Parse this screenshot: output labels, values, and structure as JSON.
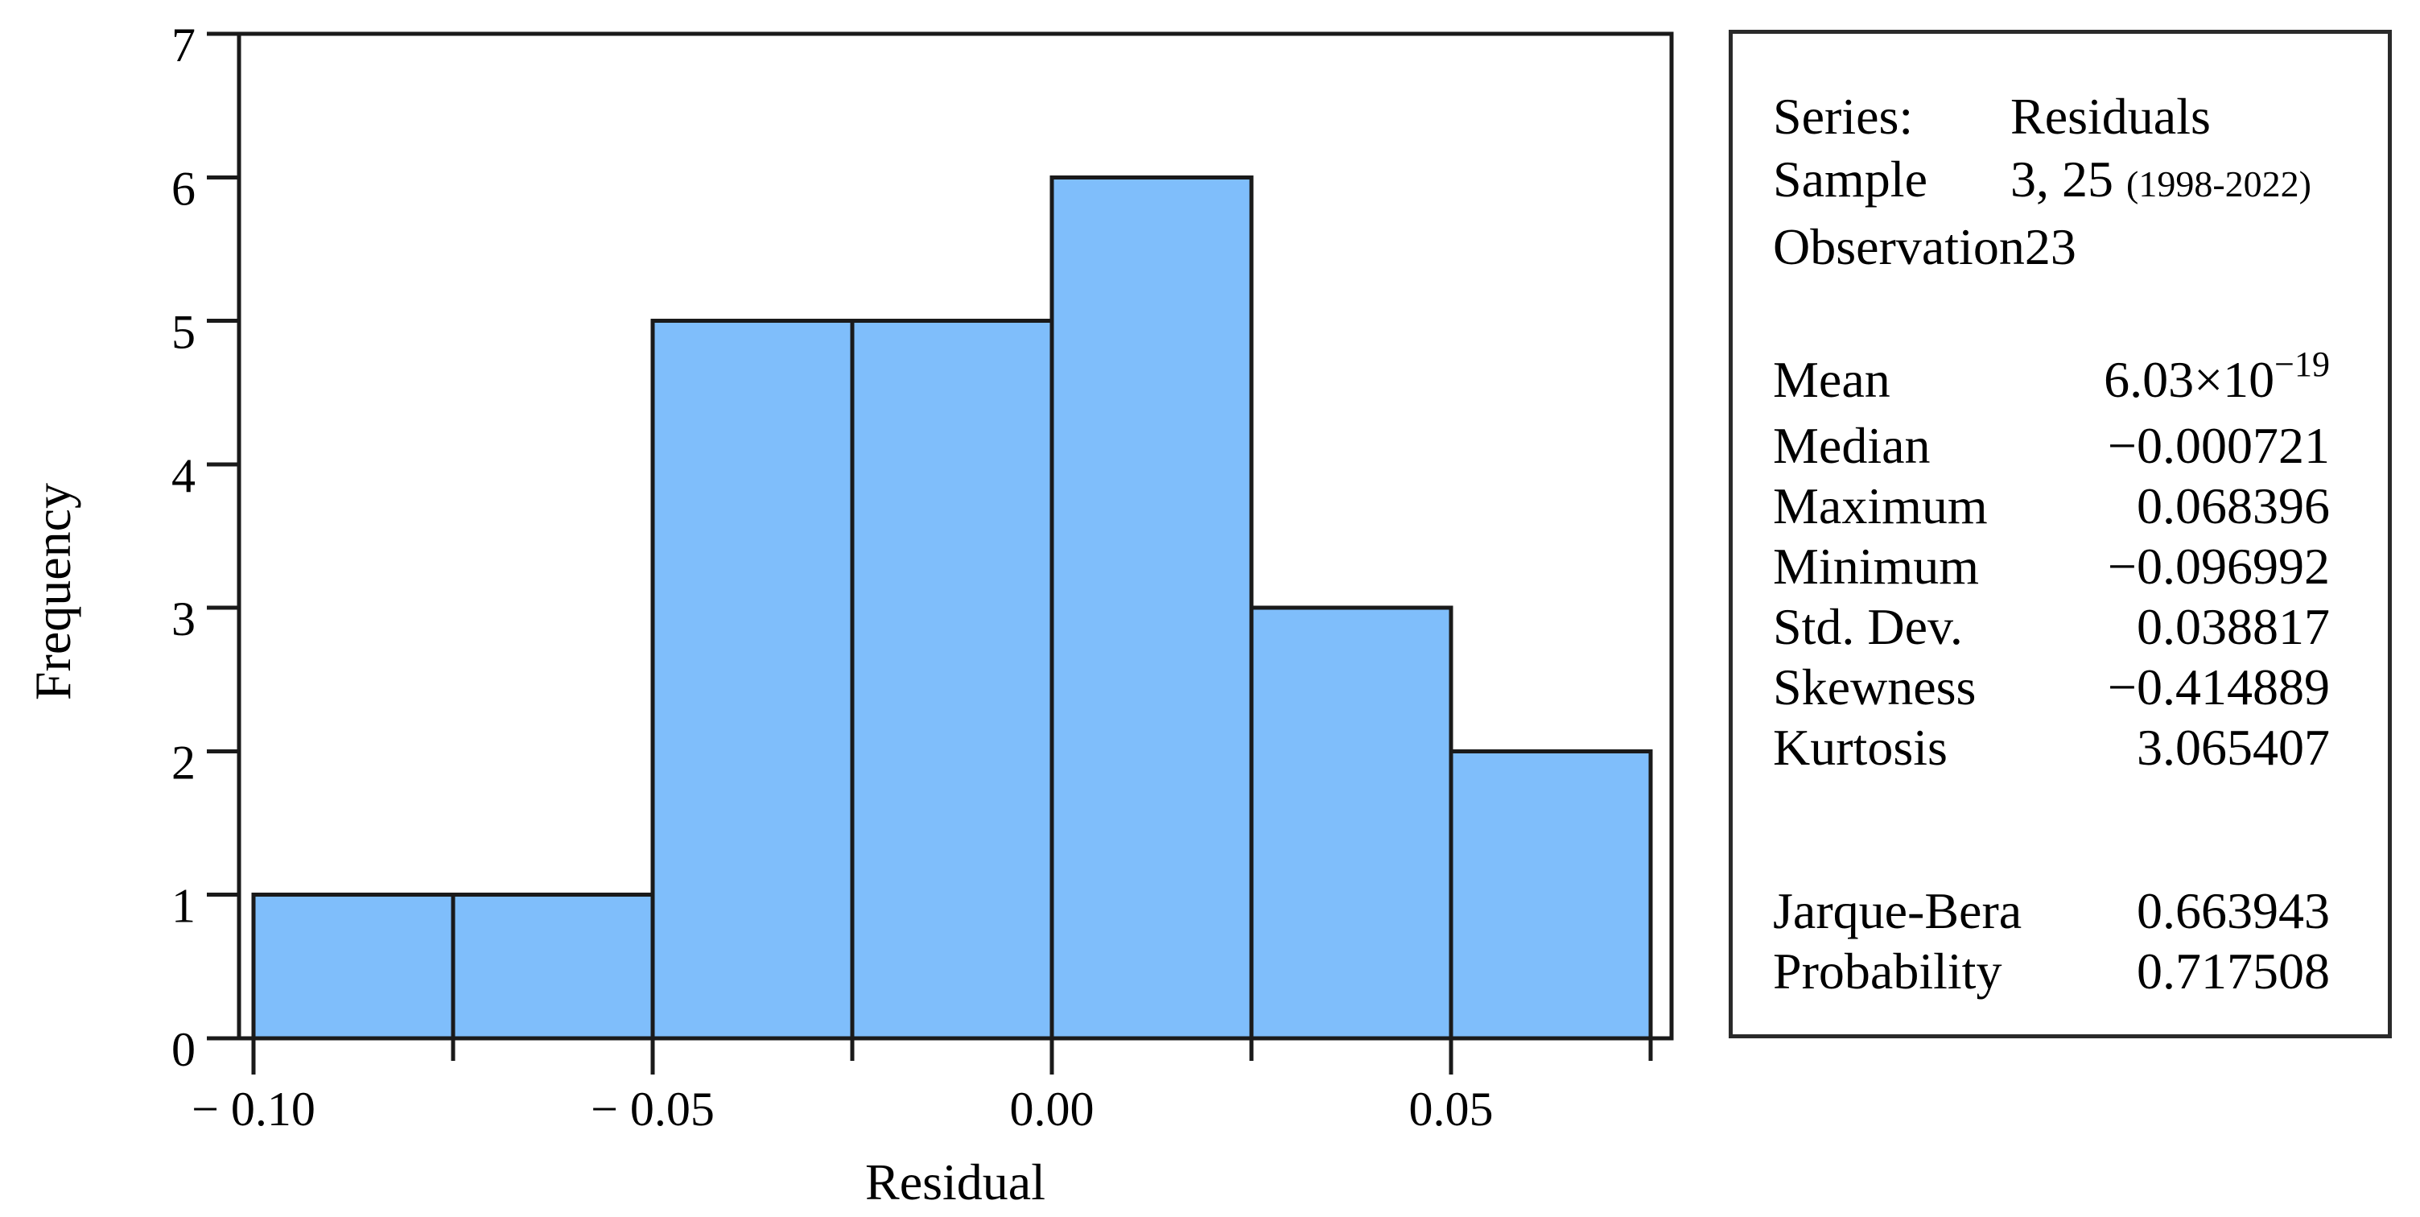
{
  "chart_data": {
    "type": "bar",
    "title": "",
    "xlabel": "Residual",
    "ylabel": "Frequency",
    "bin_edges": [
      -0.1,
      -0.075,
      -0.05,
      -0.025,
      0.0,
      0.025,
      0.05,
      0.075
    ],
    "frequencies": [
      1,
      1,
      5,
      5,
      6,
      3,
      2
    ],
    "ylim": [
      0,
      7
    ],
    "y_ticks": [
      0,
      1,
      2,
      3,
      4,
      5,
      6,
      7
    ],
    "x_major_ticks": [
      -0.1,
      -0.05,
      0.0,
      0.05
    ],
    "x_tick_labels": [
      "− 0.10",
      "− 0.05",
      "0.00",
      "0.05"
    ],
    "x_minor_ticks": [
      -0.075,
      -0.025,
      0.025,
      0.075
    ],
    "grid": false,
    "legend": "none",
    "bar_color": "#7FBEFB",
    "line_color": "#1a1a1a"
  },
  "stats_panel": {
    "header": [
      {
        "label": "Series:",
        "value": "Residuals"
      },
      {
        "label": "Sample",
        "value": "3, 25",
        "note": "(1998-2022)"
      },
      {
        "label": "Observation",
        "value": "23"
      }
    ],
    "stats": [
      {
        "label": "Mean",
        "value": "6.03×10",
        "sup": "−19"
      },
      {
        "label": "Median",
        "value": "−0.000721"
      },
      {
        "label": "Maximum",
        "value": "0.068396"
      },
      {
        "label": "Minimum",
        "value": "−0.096992"
      },
      {
        "label": "Std. Dev.",
        "value": "0.038817"
      },
      {
        "label": "Skewness",
        "value": "−0.414889"
      },
      {
        "label": "Kurtosis",
        "value": "3.065407"
      }
    ],
    "tests": [
      {
        "label": "Jarque-Bera",
        "value": "0.663943"
      },
      {
        "label": "Probability",
        "value": "0.717508"
      }
    ]
  }
}
